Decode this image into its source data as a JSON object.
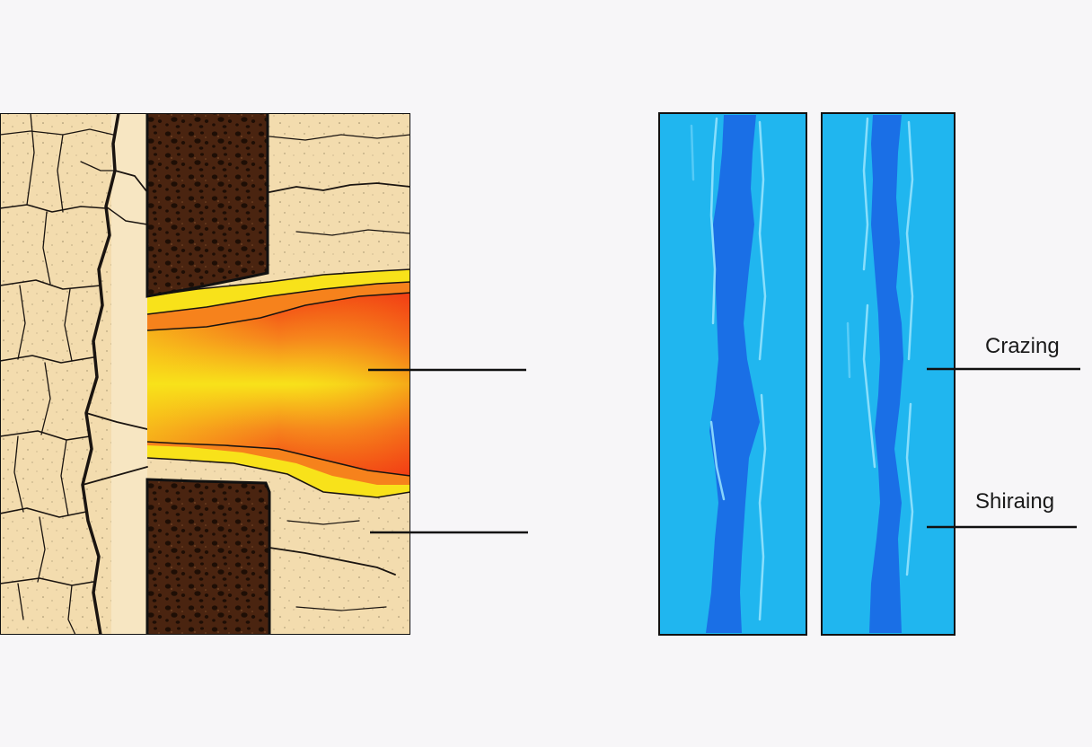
{
  "labels": {
    "crazing": "Crazing",
    "shiraing": "Shiraing"
  },
  "colors": {
    "background": "#f7f6f8",
    "clay": "#f3dcae",
    "clay_light": "#f7e6c2",
    "crack": "#1a1410",
    "burnt_block": "#4a2410",
    "burnt_spot": "#1e0e05",
    "glow_yellow": "#f8e21a",
    "glow_orange": "#f6821c",
    "glow_red": "#f23c14",
    "glaze_light": "#20b6ef",
    "glaze_dark": "#1a6fe6",
    "glaze_highlight": "#9be6ff",
    "outline": "#111111"
  },
  "icons": [
    "cracked-clay-panel",
    "heated-core-panel",
    "glaze-panel-crazing",
    "glaze-panel-shivering"
  ]
}
